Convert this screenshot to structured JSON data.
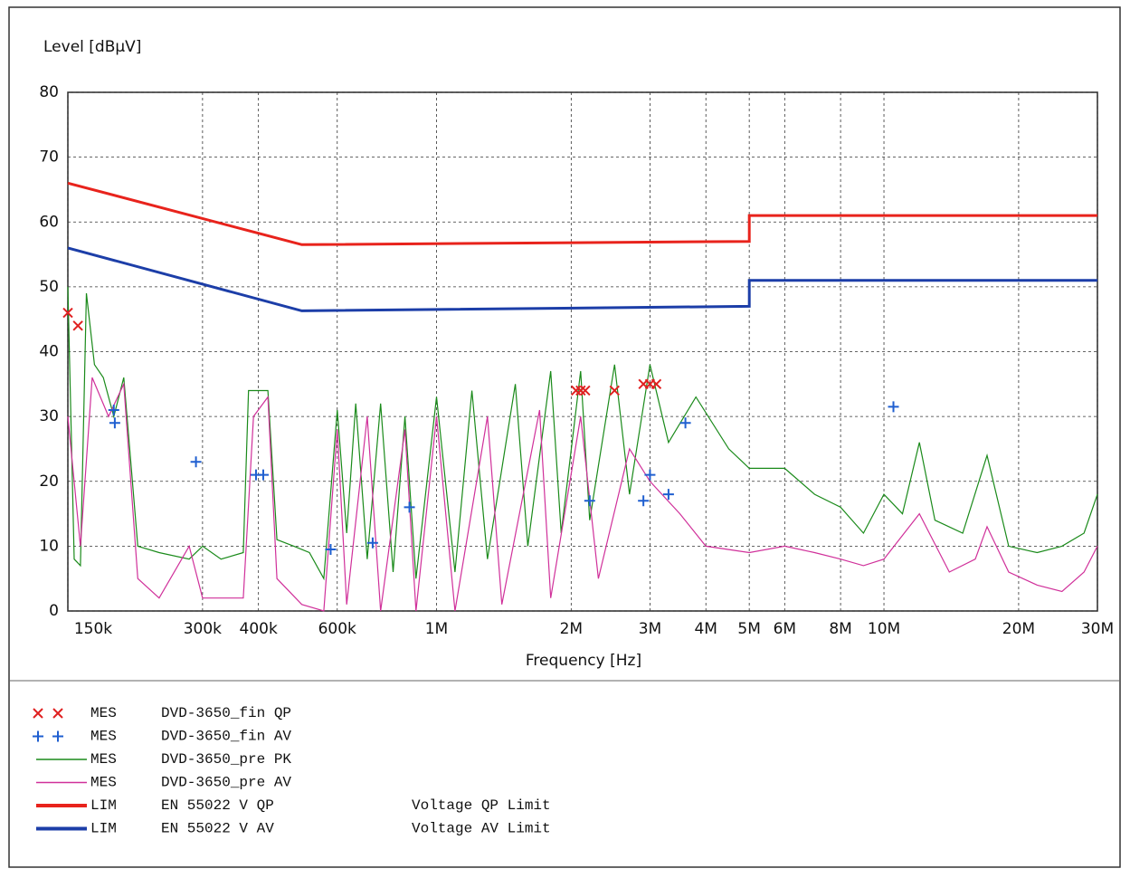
{
  "chart_data": {
    "type": "line",
    "y_label": "Level [dBµV]",
    "x_label": "Frequency [Hz]",
    "x_scale": "log",
    "grid": true,
    "xlim": [
      150000,
      30000000
    ],
    "ylim": [
      0,
      80
    ],
    "yticks": [
      0,
      10,
      20,
      30,
      40,
      50,
      60,
      70,
      80
    ],
    "xticks": [
      {
        "value": 150000,
        "label": "150k"
      },
      {
        "value": 300000,
        "label": "300k"
      },
      {
        "value": 400000,
        "label": "400k"
      },
      {
        "value": 600000,
        "label": "600k"
      },
      {
        "value": 1000000,
        "label": "1M"
      },
      {
        "value": 2000000,
        "label": "2M"
      },
      {
        "value": 3000000,
        "label": "3M"
      },
      {
        "value": 4000000,
        "label": "4M"
      },
      {
        "value": 5000000,
        "label": "5M"
      },
      {
        "value": 6000000,
        "label": "6M"
      },
      {
        "value": 8000000,
        "label": "8M"
      },
      {
        "value": 10000000,
        "label": "10M"
      },
      {
        "value": 20000000,
        "label": "20M"
      },
      {
        "value": 30000000,
        "label": "30M"
      }
    ],
    "series": [
      {
        "kind": "MES",
        "name": "DVD-3650_fin QP",
        "color": "#e02020",
        "style": "marker-x",
        "x": [
          150000,
          158000,
          2050000,
          2100000,
          2150000,
          2500000,
          2900000,
          3000000,
          3100000
        ],
        "values": [
          46,
          44,
          34,
          34,
          34,
          34,
          35,
          35,
          35
        ]
      },
      {
        "kind": "MES",
        "name": "DVD-3650_fin AV",
        "color": "#1f5fd0",
        "style": "marker-plus",
        "x": [
          190000,
          191000,
          290000,
          395000,
          410000,
          580000,
          720000,
          870000,
          2200000,
          2900000,
          3000000,
          3300000,
          3600000,
          10500000
        ],
        "values": [
          31,
          29,
          23,
          21,
          21,
          9.5,
          10.5,
          16,
          17,
          17,
          21,
          18,
          29,
          31.5
        ]
      },
      {
        "kind": "MES",
        "name": "DVD-3650_pre PK",
        "color": "#1a8a1a",
        "style": "line",
        "x": [
          150000,
          155000,
          160000,
          165000,
          172000,
          180000,
          190000,
          200000,
          215000,
          240000,
          280000,
          300000,
          330000,
          370000,
          380000,
          420000,
          440000,
          480000,
          520000,
          560000,
          600000,
          630000,
          660000,
          700000,
          750000,
          800000,
          850000,
          900000,
          1000000,
          1100000,
          1200000,
          1300000,
          1500000,
          1600000,
          1800000,
          1900000,
          2100000,
          2200000,
          2500000,
          2700000,
          3000000,
          3300000,
          3800000,
          4500000,
          5000000,
          6000000,
          7000000,
          8000000,
          9000000,
          10000000,
          11000000,
          12000000,
          13000000,
          15000000,
          17000000,
          19000000,
          22000000,
          25000000,
          28000000,
          30000000
        ],
        "values": [
          50,
          8,
          7,
          49,
          38,
          36,
          30,
          36,
          10,
          9,
          8,
          10,
          8,
          9,
          34,
          34,
          11,
          10,
          9,
          5,
          31,
          12,
          32,
          8,
          32,
          6,
          30,
          5,
          33,
          6,
          34,
          8,
          35,
          10,
          37,
          12,
          37,
          14,
          38,
          18,
          38,
          26,
          33,
          25,
          22,
          22,
          18,
          16,
          12,
          18,
          15,
          26,
          14,
          12,
          24,
          10,
          9,
          10,
          12,
          18
        ]
      },
      {
        "kind": "MES",
        "name": "DVD-3650_pre AV",
        "color": "#d0309a",
        "style": "line",
        "x": [
          150000,
          160000,
          170000,
          185000,
          200000,
          215000,
          240000,
          280000,
          300000,
          370000,
          390000,
          420000,
          440000,
          500000,
          560000,
          600000,
          630000,
          700000,
          750000,
          850000,
          900000,
          1000000,
          1100000,
          1300000,
          1400000,
          1700000,
          1800000,
          2100000,
          2300000,
          2700000,
          3000000,
          3500000,
          4000000,
          5000000,
          6000000,
          7000000,
          8000000,
          9000000,
          10000000,
          12000000,
          14000000,
          16000000,
          17000000,
          19000000,
          22000000,
          25000000,
          28000000,
          30000000
        ],
        "values": [
          30,
          10,
          36,
          30,
          35,
          5,
          2,
          10,
          2,
          2,
          30,
          33,
          5,
          1,
          0,
          28,
          1,
          30,
          0,
          28,
          0,
          30,
          0,
          30,
          1,
          31,
          2,
          30,
          5,
          25,
          20,
          15,
          10,
          9,
          10,
          9,
          8,
          7,
          8,
          15,
          6,
          8,
          13,
          6,
          4,
          3,
          6,
          10
        ]
      },
      {
        "kind": "LIM",
        "name": "EN 55022 V QP",
        "note": "Voltage QP Limit",
        "color": "#e8231c",
        "style": "thick-line",
        "x": [
          150000,
          500000,
          5000000,
          5000000,
          30000000
        ],
        "values": [
          66,
          56.5,
          57,
          61,
          61
        ]
      },
      {
        "kind": "LIM",
        "name": "EN 55022 V AV",
        "note": "Voltage AV Limit",
        "color": "#1c3ea8",
        "style": "thick-line",
        "x": [
          150000,
          500000,
          5000000,
          5000000,
          30000000
        ],
        "values": [
          56,
          46.3,
          47,
          51,
          51
        ]
      }
    ]
  }
}
